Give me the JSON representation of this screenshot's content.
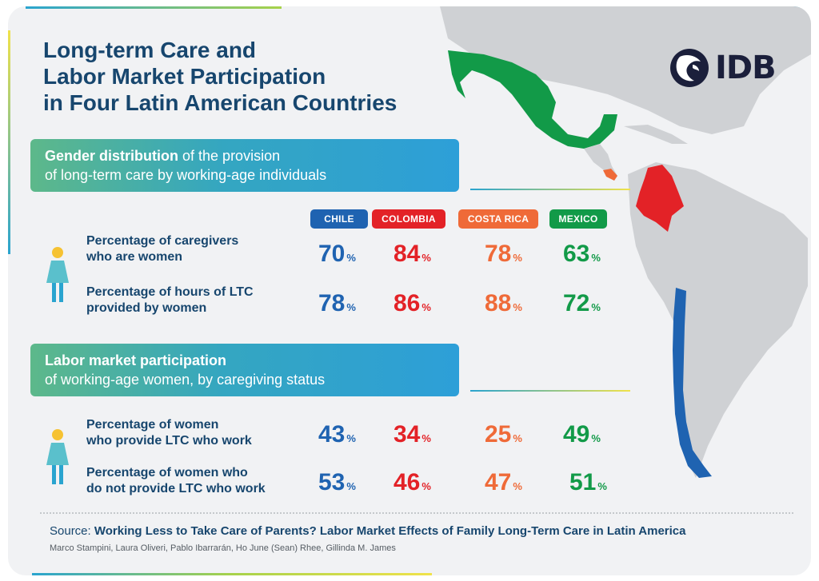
{
  "title": {
    "line1": "Long-term Care and",
    "line2": "Labor Market Participation",
    "line3": "in Four Latin American Countries"
  },
  "logo": {
    "text": "IDB",
    "icon": "idb-globe-icon"
  },
  "section1": {
    "bold": "Gender distribution",
    "rest1": " of the provision",
    "line2": "of long-term care by working-age individuals"
  },
  "section2": {
    "line1": "Labor market participation",
    "line2": "of working-age women, by caregiving status"
  },
  "countries": [
    "CHILE",
    "COLOMBIA",
    "COSTA RICA",
    "MEXICO"
  ],
  "colors": {
    "chile": "#1f63b1",
    "colombia": "#e32227",
    "costa_rica": "#ef6a38",
    "mexico": "#129a48",
    "title": "#17466e"
  },
  "rows": [
    {
      "label1": "Percentage of caregivers",
      "label2": "who are women",
      "values": [
        "70",
        "84",
        "78",
        "63"
      ]
    },
    {
      "label1": "Percentage of hours of LTC",
      "label2": "provided by women",
      "values": [
        "78",
        "86",
        "88",
        "72"
      ]
    },
    {
      "label1": "Percentage of women",
      "label2": "who provide LTC who work",
      "values": [
        "43",
        "34",
        "25",
        "49"
      ]
    },
    {
      "label1": "Percentage of women who",
      "label2": "do not provide LTC who work",
      "values": [
        "53",
        "46",
        "47",
        "51"
      ]
    }
  ],
  "percent_sign": "%",
  "source": {
    "lead": "Source: ",
    "title": "Working Less to Take Care of Parents? Labor Market Effects of Family Long-Term Care in Latin America",
    "authors": "Marco Stampini, Laura Oliveri, Pablo Ibarrarán, Ho June (Sean) Rhee, Gillinda M. James"
  }
}
